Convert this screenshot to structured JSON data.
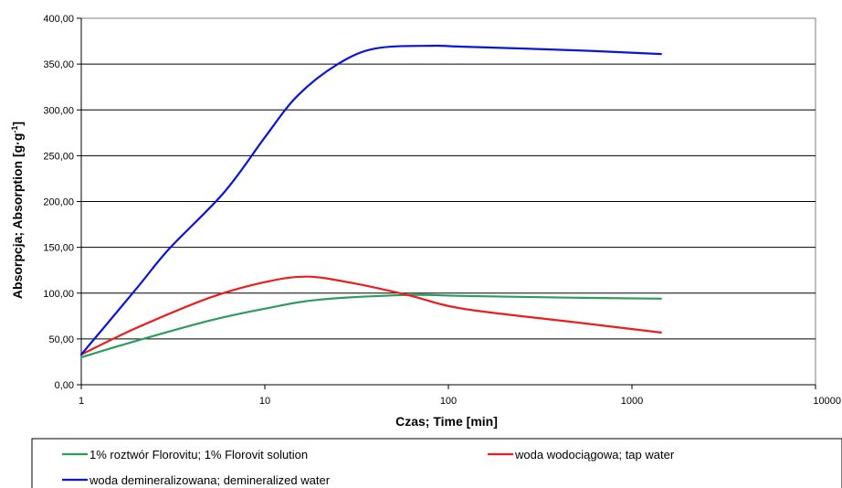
{
  "chart_data": {
    "type": "line",
    "xlabel": "Czas; Time [min]",
    "ylabel_main": "Absorpcja; Absorption [g·g",
    "ylabel_sup": "-1",
    "ylabel_close": "]",
    "x_scale": "log",
    "xlim": [
      1,
      10000
    ],
    "ylim": [
      0,
      400
    ],
    "x_ticks": [
      1,
      10,
      100,
      1000,
      10000
    ],
    "x_tick_labels": [
      "1",
      "10",
      "100",
      "1000",
      "10000"
    ],
    "y_ticks": [
      0,
      50,
      100,
      150,
      200,
      250,
      300,
      350,
      400
    ],
    "y_tick_labels": [
      "0,00",
      "50,00",
      "100,00",
      "150,00",
      "200,00",
      "250,00",
      "300,00",
      "350,00",
      "400,00"
    ],
    "grid": "horizontal",
    "legend_position": "bottom",
    "series": [
      {
        "name": "1% roztwór Florovitu; 1% Florovit solution",
        "color": "#2e9b5f",
        "x": [
          1,
          2,
          5,
          10,
          20,
          60,
          120,
          500,
          1440
        ],
        "y": [
          30,
          48,
          70,
          83,
          93,
          98,
          97,
          95,
          94
        ]
      },
      {
        "name": "woda wodociągowa; tap water",
        "color": "#ee1c1c",
        "x": [
          1,
          2,
          5,
          10,
          17,
          30,
          60,
          120,
          500,
          1440
        ],
        "y": [
          33,
          62,
          95,
          112,
          118,
          111,
          98,
          83,
          68,
          57
        ]
      },
      {
        "name": "woda demineralizowana; demineralized water",
        "color": "#0a14dc",
        "x": [
          1,
          2,
          3,
          6,
          10,
          15,
          25,
          40,
          80,
          120,
          500,
          1440
        ],
        "y": [
          33,
          105,
          148,
          210,
          270,
          315,
          350,
          367,
          370,
          369,
          365,
          361
        ]
      }
    ]
  }
}
